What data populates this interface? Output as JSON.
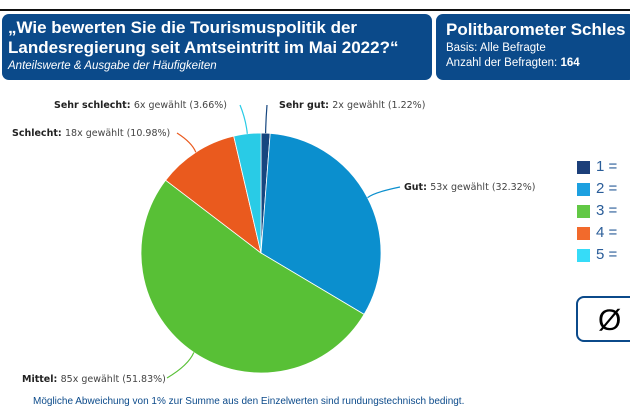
{
  "header": {
    "question": "„Wie bewerten Sie die Tourismuspolitik der Landesregierung seit Amtseintritt im Mai 2022?“",
    "subtitle": "Anteilswerte & Ausgabe der Häufigkeiten"
  },
  "panel": {
    "title": "Politbarometer Schles",
    "basis": "Basis: Alle Befragte",
    "count_label": "Anzahl der Befragten:",
    "count": "164"
  },
  "legend": [
    {
      "label": "1 =",
      "color": "#1c3f7a"
    },
    {
      "label": "2 =",
      "color": "#1da0e0"
    },
    {
      "label": "3 =",
      "color": "#62c845"
    },
    {
      "label": "4 =",
      "color": "#f26a2c"
    },
    {
      "label": "5 =",
      "color": "#36dcf8"
    }
  ],
  "average_symbol": "Ø",
  "footnote": "Mögliche Abweichung von 1% zur Summe aus den Einzelwerten sind rundungstechnisch bedingt.",
  "chart_data": {
    "type": "pie",
    "slices": [
      {
        "name": "Sehr gut",
        "count": 2,
        "percent": 1.22,
        "text": "2x gewählt (1.22%)",
        "color": "#16467f"
      },
      {
        "name": "Gut",
        "count": 53,
        "percent": 32.32,
        "text": "53x gewählt (32.32%)",
        "color": "#0b8fce"
      },
      {
        "name": "Mittel",
        "count": 85,
        "percent": 51.83,
        "text": "85x gewählt (51.83%)",
        "color": "#58c036"
      },
      {
        "name": "Schlecht",
        "count": 18,
        "percent": 10.98,
        "text": "18x gewählt (10.98%)",
        "color": "#ea5a1e"
      },
      {
        "name": "Sehr schlecht",
        "count": 6,
        "percent": 3.66,
        "text": "6x gewählt (3.66%)",
        "color": "#29cbe6"
      }
    ]
  }
}
